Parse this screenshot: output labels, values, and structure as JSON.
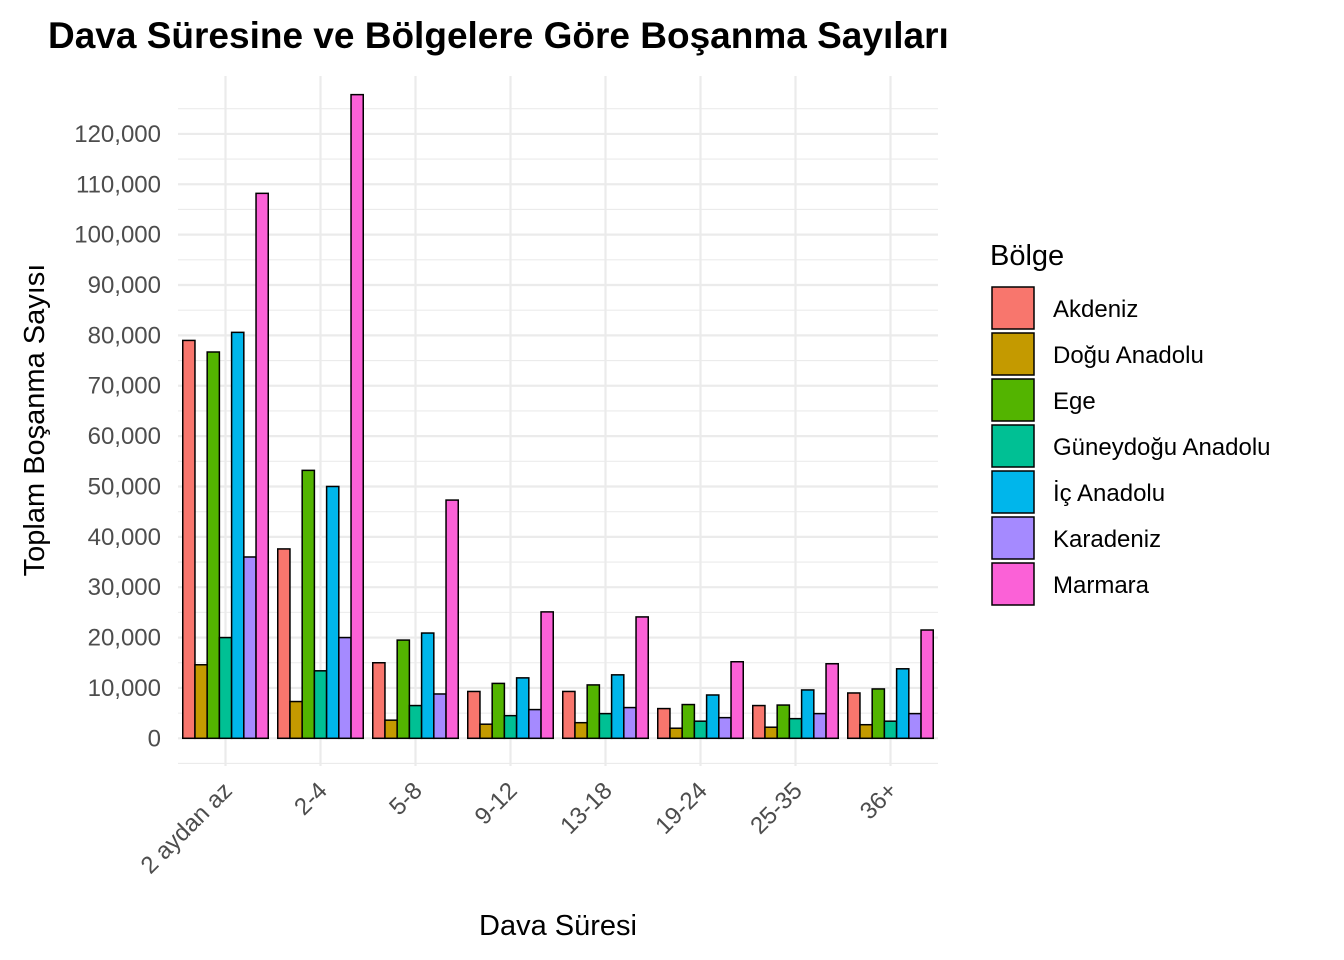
{
  "chart_data": {
    "type": "bar",
    "title": "Dava Süresine ve Bölgelere Göre Boşanma Sayıları",
    "xlabel": "Dava Süresi",
    "ylabel": "Toplam Boşanma Sayısı",
    "ylim": [
      -5500,
      131500
    ],
    "y_ticks": [
      0,
      10000,
      20000,
      30000,
      40000,
      50000,
      60000,
      70000,
      80000,
      90000,
      100000,
      110000,
      120000
    ],
    "y_tick_labels": [
      "0",
      "10,000",
      "20,000",
      "30,000",
      "40,000",
      "50,000",
      "60,000",
      "70,000",
      "80,000",
      "90,000",
      "100,000",
      "110,000",
      "120,000"
    ],
    "grid": true,
    "legend_title": "Bölge",
    "legend_position": "right",
    "categories": [
      "2 aydan az",
      "2-4",
      "5-8",
      "9-12",
      "13-18",
      "19-24",
      "25-35",
      "36+"
    ],
    "series": [
      {
        "name": "Akdeniz",
        "color": "#F8766D",
        "values": [
          79000,
          37600,
          15000,
          9300,
          9300,
          5900,
          6500,
          9000
        ]
      },
      {
        "name": "Doğu Anadolu",
        "color": "#C49A00",
        "values": [
          14600,
          7300,
          3600,
          2800,
          3100,
          2000,
          2200,
          2700
        ]
      },
      {
        "name": "Ege",
        "color": "#53B400",
        "values": [
          76700,
          53200,
          19500,
          10900,
          10600,
          6700,
          6600,
          9800
        ]
      },
      {
        "name": "Güneydoğu Anadolu",
        "color": "#00C094",
        "values": [
          20000,
          13400,
          6500,
          4500,
          4900,
          3400,
          3900,
          3400
        ]
      },
      {
        "name": "İç Anadolu",
        "color": "#00B6EB",
        "values": [
          80600,
          50000,
          20900,
          12000,
          12600,
          8600,
          9600,
          13800
        ]
      },
      {
        "name": "Karadeniz",
        "color": "#A58AFF",
        "values": [
          36000,
          20000,
          8800,
          5700,
          6100,
          4100,
          4900,
          4900
        ]
      },
      {
        "name": "Marmara",
        "color": "#FB61D7",
        "values": [
          108200,
          127800,
          47300,
          25100,
          24100,
          15200,
          14800,
          21500
        ]
      }
    ]
  }
}
